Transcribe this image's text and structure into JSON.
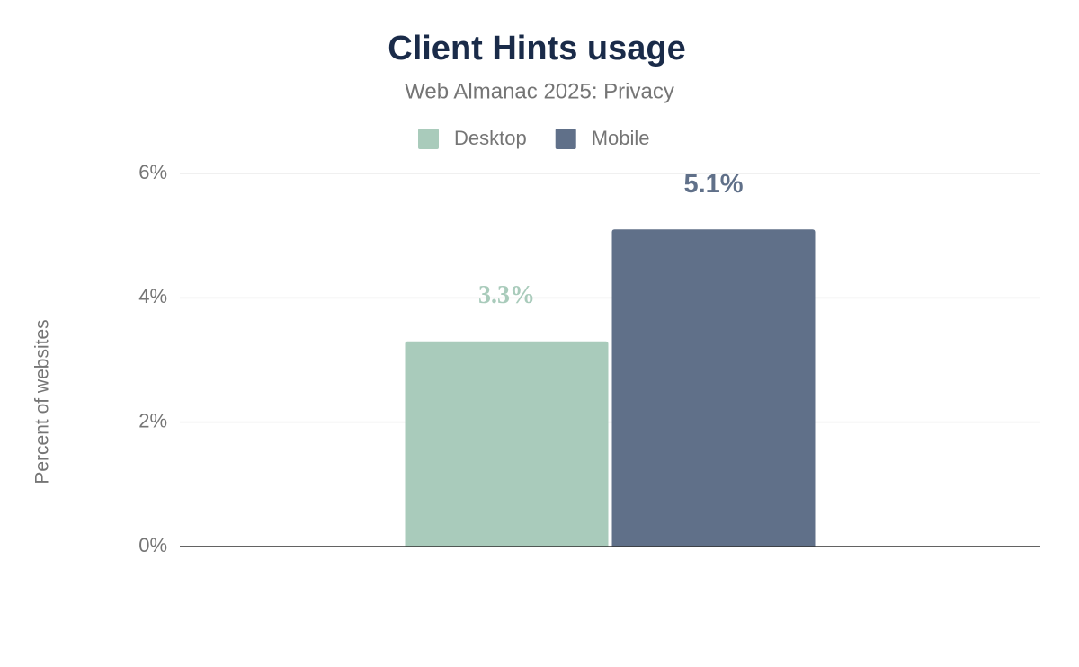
{
  "chart_data": {
    "type": "bar",
    "title": "Client Hints usage",
    "subtitle": "Web Almanac 2025: Privacy",
    "y_label": "Percent of websites",
    "categories": [
      null
    ],
    "series": [
      {
        "name": "Desktop",
        "color": "#a9cbbb",
        "values": [
          3.3
        ],
        "value_labels": [
          "3.3%"
        ]
      },
      {
        "name": "Mobile",
        "color": "#607089",
        "values": [
          5.1
        ],
        "value_labels": [
          "5.1%"
        ]
      }
    ],
    "ylim": [
      0,
      6
    ],
    "yticks": [
      {
        "value": 0,
        "label": "0%"
      },
      {
        "value": 2,
        "label": "2%"
      },
      {
        "value": 4,
        "label": "4%"
      },
      {
        "value": 6,
        "label": "6%"
      }
    ],
    "grid": true,
    "legend": "top"
  }
}
